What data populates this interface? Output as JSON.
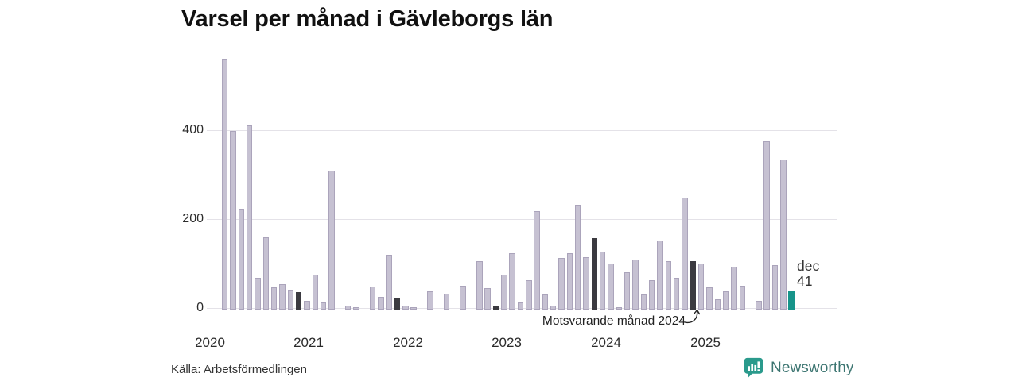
{
  "title": "Varsel per månad i Gävleborgs län",
  "source": "Källa: Arbetsförmedlingen",
  "branding": {
    "name": "Newsworthy"
  },
  "annotation": {
    "text": "Motsvarande månad 2024"
  },
  "last_point_label": {
    "line1": "dec",
    "line2": "41"
  },
  "chart_data": {
    "type": "bar",
    "title": "Varsel per månad i Gävleborgs län",
    "xlabel": "",
    "ylabel": "",
    "ylim": [
      0,
      580
    ],
    "yticks": [
      "0",
      "200",
      "400"
    ],
    "x_year_ticks": [
      "2020",
      "2021",
      "2022",
      "2023",
      "2024",
      "2025"
    ],
    "grid": "horizontal",
    "legend": "none",
    "months": [
      "2020-01",
      "2020-02",
      "2020-03",
      "2020-04",
      "2020-05",
      "2020-06",
      "2020-07",
      "2020-08",
      "2020-09",
      "2020-10",
      "2020-11",
      "2020-12",
      "2021-01",
      "2021-02",
      "2021-03",
      "2021-04",
      "2021-05",
      "2021-06",
      "2021-07",
      "2021-08",
      "2021-09",
      "2021-10",
      "2021-11",
      "2021-12",
      "2022-01",
      "2022-02",
      "2022-03",
      "2022-04",
      "2022-05",
      "2022-06",
      "2022-07",
      "2022-08",
      "2022-09",
      "2022-10",
      "2022-11",
      "2022-12",
      "2023-01",
      "2023-02",
      "2023-03",
      "2023-04",
      "2023-05",
      "2023-06",
      "2023-07",
      "2023-08",
      "2023-09",
      "2023-10",
      "2023-11",
      "2023-12",
      "2024-01",
      "2024-02",
      "2024-03",
      "2024-04",
      "2024-05",
      "2024-06",
      "2024-07",
      "2024-08",
      "2024-09",
      "2024-10",
      "2024-11",
      "2024-12",
      "2025-01",
      "2025-02",
      "2025-03",
      "2025-04",
      "2025-05",
      "2025-06",
      "2025-07",
      "2025-08",
      "2025-09",
      "2025-10",
      "2025-11",
      "2025-12"
    ],
    "values": [
      0,
      0,
      565,
      402,
      228,
      415,
      72,
      163,
      51,
      58,
      44,
      39,
      20,
      79,
      17,
      314,
      0,
      9,
      6,
      0,
      52,
      29,
      123,
      26,
      9,
      6,
      0,
      42,
      0,
      36,
      0,
      53,
      0,
      110,
      48,
      8,
      78,
      128,
      17,
      67,
      222,
      34,
      9,
      116,
      127,
      237,
      118,
      161,
      131,
      103,
      6,
      85,
      112,
      34,
      67,
      155,
      109,
      72,
      253,
      109,
      103,
      51,
      23,
      41,
      96,
      54,
      0,
      20,
      380,
      100,
      338,
      41
    ],
    "highlight_rule": "December bars shown dark; December 2025 (latest, value 41) shown teal",
    "colors": {
      "bar": "#c6c1d2",
      "bar_border": "#aba4bb",
      "december": "#3b3a40",
      "current": "#17948a"
    }
  }
}
